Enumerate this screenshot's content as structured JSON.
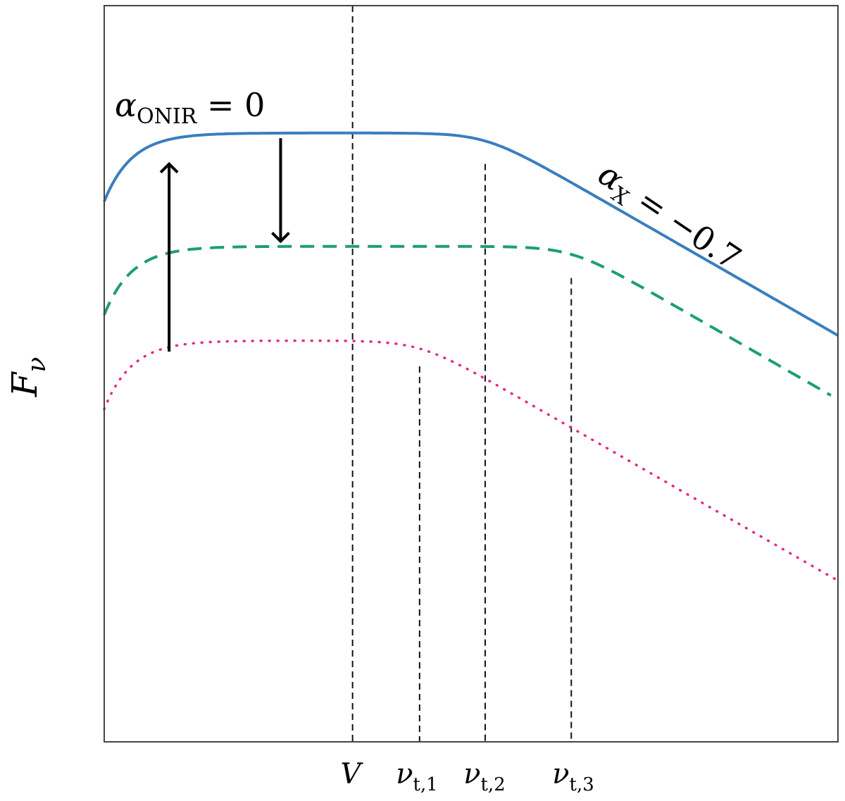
{
  "chart_data": {
    "type": "line",
    "title": "",
    "xlabel": "",
    "ylabel": "Fν",
    "ylabel_parts": {
      "main": "F",
      "sub": "ν"
    },
    "x_ticks": [
      {
        "label": "V",
        "x": 3.52
      },
      {
        "label": "ν",
        "sub": "t,1",
        "x": 4.47
      },
      {
        "label": "ν",
        "sub": "t,2",
        "x": 5.4
      },
      {
        "label": "ν",
        "sub": "t,3",
        "x": 6.62
      }
    ],
    "xlim": [
      0,
      10.4
    ],
    "ylim": [
      0,
      10
    ],
    "series": [
      {
        "name": "solid",
        "color": "#3a7ebf",
        "style": "solid",
        "width": 4,
        "peak": 8.27,
        "break": 5.4,
        "decay": 0.55,
        "rise_a": 0.93,
        "rise_w": 0.9,
        "x_end": 10.4
      },
      {
        "name": "dashed",
        "color": "#1b9e77",
        "style": "dashed",
        "width": 4,
        "peak": 6.73,
        "break": 6.62,
        "decay": 0.55,
        "rise_a": 0.93,
        "rise_w": 0.9,
        "x_end": 10.3
      },
      {
        "name": "dotted",
        "color": "#e7298a",
        "style": "dotted",
        "width": 3.5,
        "peak": 5.45,
        "break": 4.47,
        "decay": 0.55,
        "rise_a": 0.93,
        "rise_w": 0.9,
        "x_end": 10.4
      }
    ],
    "vlines": [
      {
        "x": 3.52,
        "y_top": 10
      },
      {
        "x": 4.47,
        "y_top": 5.1
      },
      {
        "x": 5.4,
        "y_top": 7.85
      },
      {
        "x": 6.62,
        "y_top": 6.3
      }
    ],
    "annotations": [
      {
        "name": "alpha-onir",
        "symbol": "α",
        "sub": "ONIR",
        "rest": " = 0"
      },
      {
        "name": "alpha-x",
        "symbol": "α",
        "sub": "X",
        "rest": " = −0.7"
      }
    ],
    "arrows": [
      {
        "name": "up",
        "x": 0.92,
        "from_y": 5.3,
        "to_y": 7.85
      },
      {
        "name": "down",
        "x": 2.5,
        "from_y": 8.2,
        "to_y": 6.8
      }
    ]
  }
}
